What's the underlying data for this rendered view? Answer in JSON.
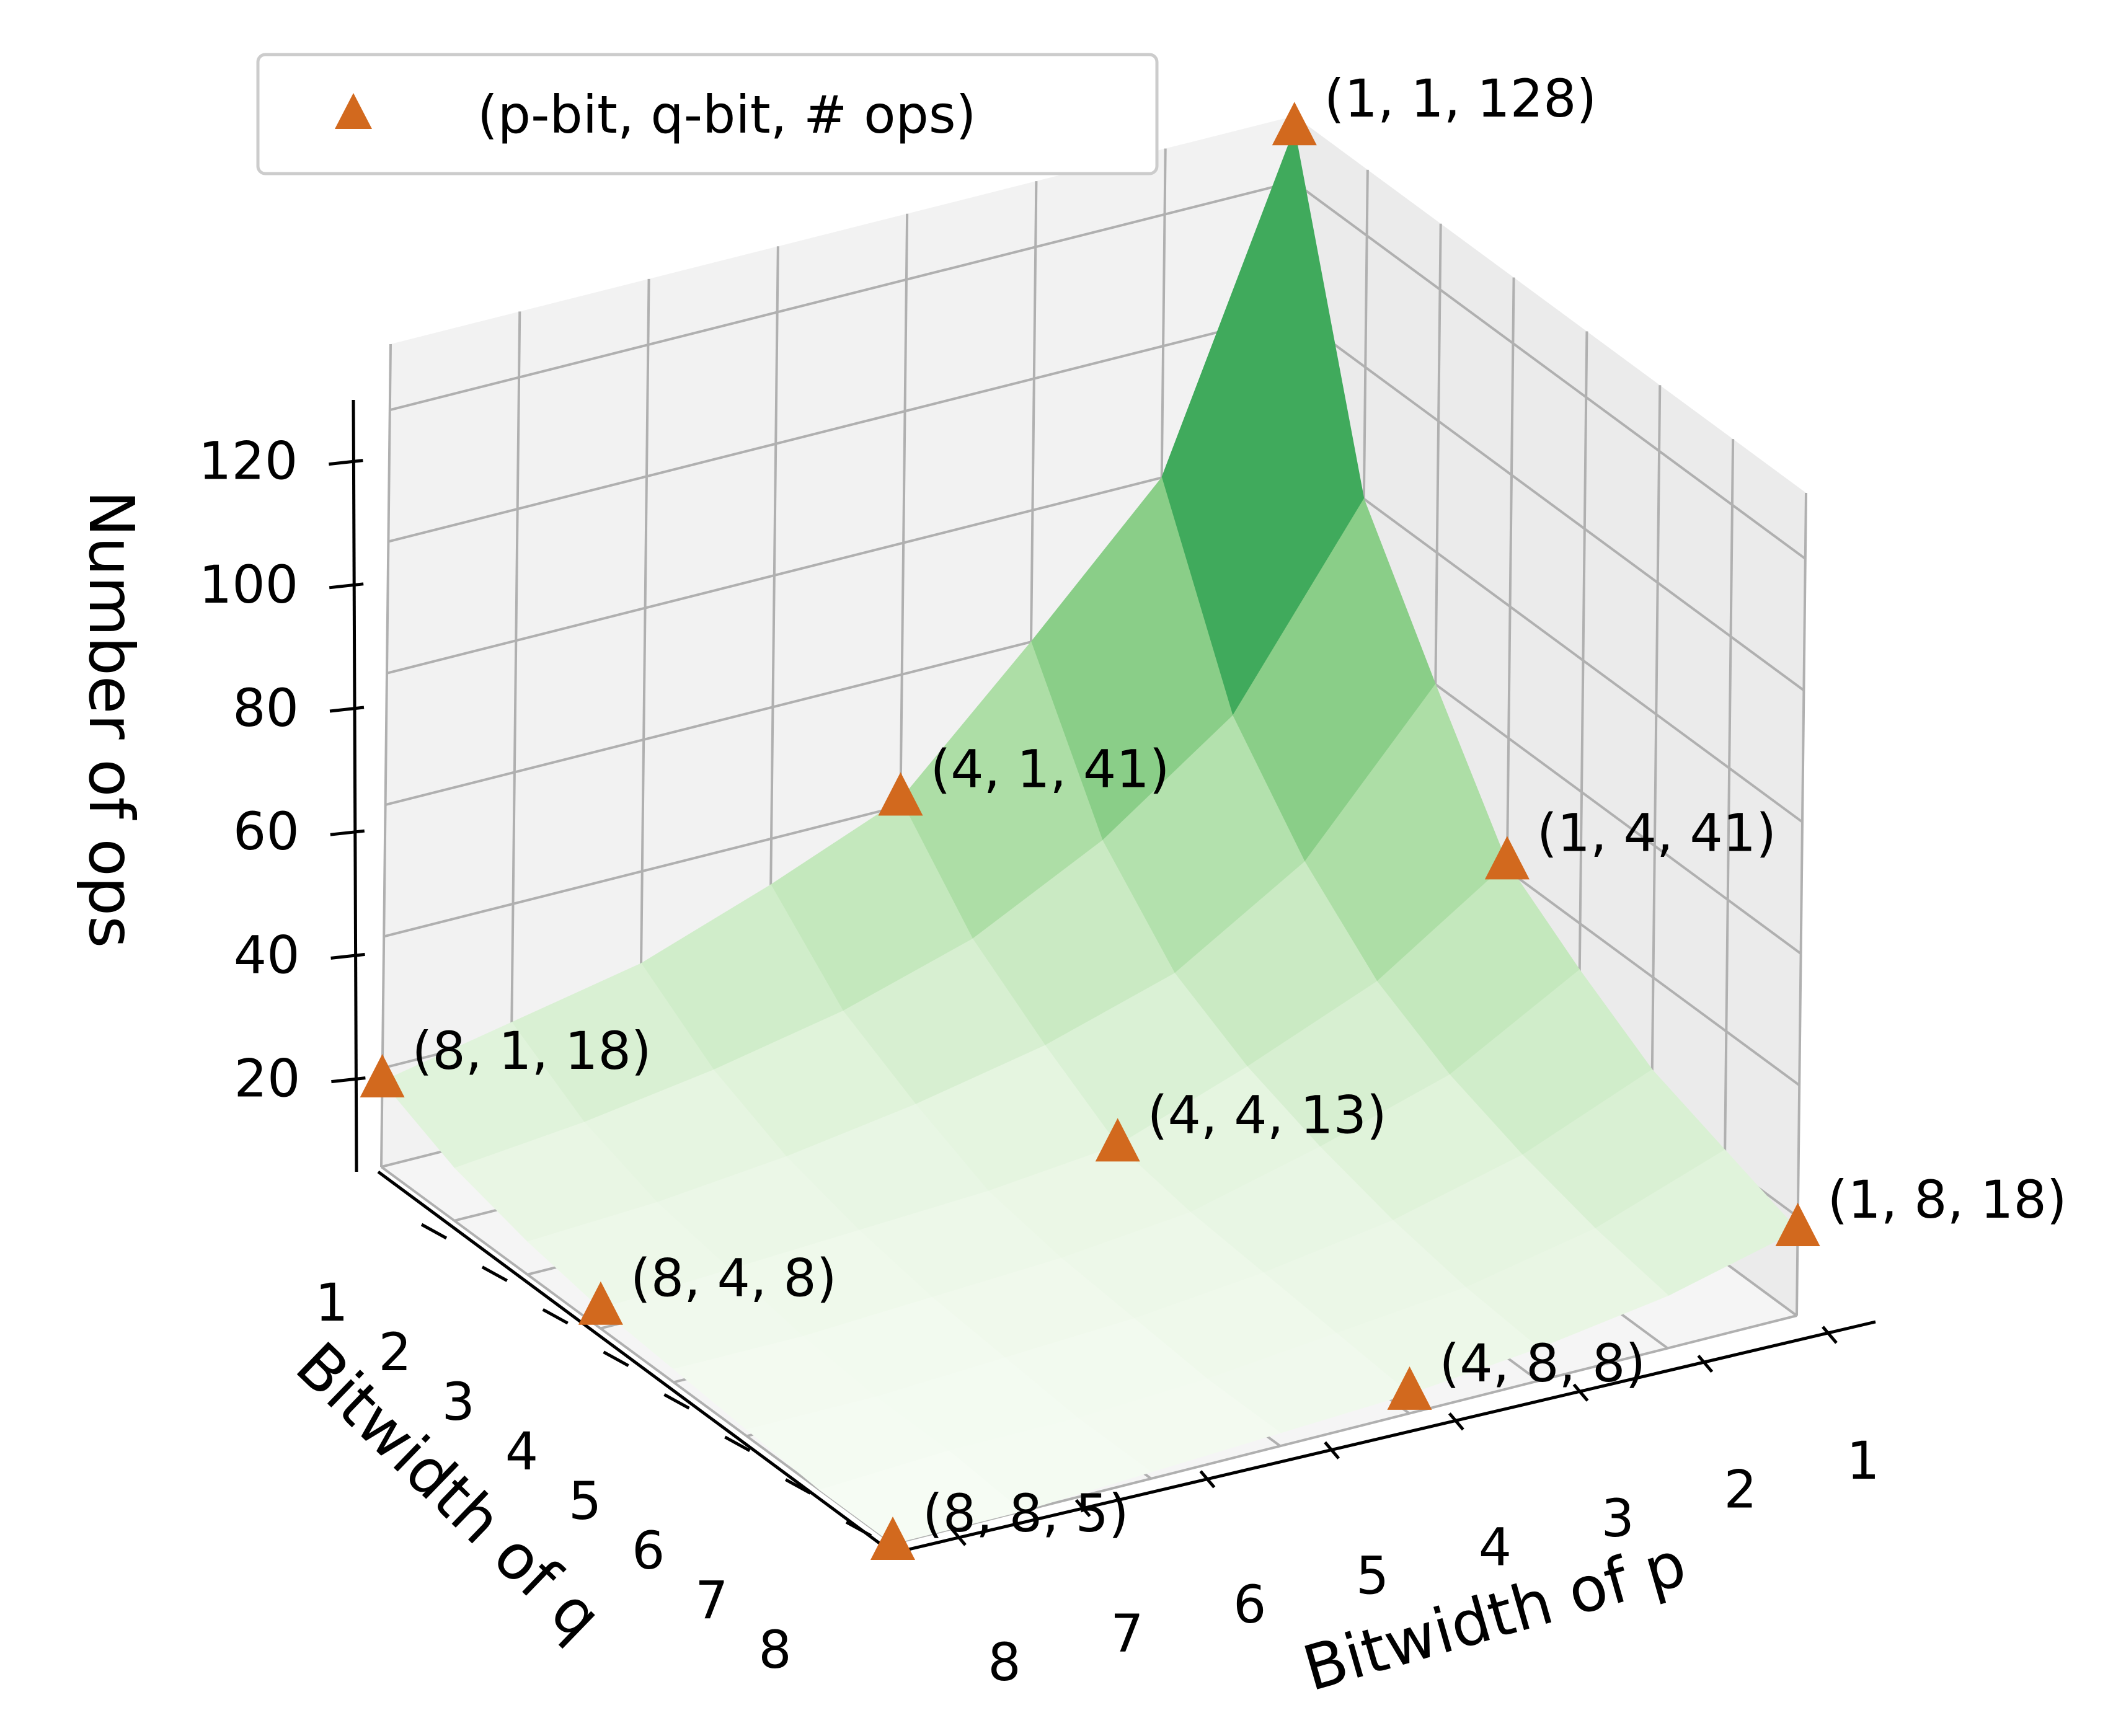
{
  "chart_data": {
    "type": "surface3d",
    "x_axis": {
      "label": "Bitwidth of p",
      "ticks": [
        1,
        2,
        3,
        4,
        5,
        6,
        7,
        8
      ]
    },
    "y_axis": {
      "label": "Bitwidth of q",
      "ticks": [
        1,
        2,
        3,
        4,
        5,
        6,
        7,
        8
      ]
    },
    "z_axis": {
      "label": "Number of ops",
      "ticks": [
        20,
        40,
        60,
        80,
        100,
        120
      ],
      "range": [
        5,
        130
      ]
    },
    "grid": true,
    "colormap": "Greens",
    "legend": {
      "location": "top-left",
      "entries": [
        {
          "marker": "triangle",
          "label": "(p-bit, q-bit, # ops)",
          "color": "#D2691E"
        }
      ]
    },
    "marker_color": "#D2691E",
    "surface_z": [
      [
        128,
        80,
        60,
        41,
        33,
        26,
        22,
        18
      ],
      [
        80,
        52,
        38,
        28,
        22,
        18,
        15,
        13
      ],
      [
        60,
        38,
        26,
        20,
        16,
        13,
        11,
        10
      ],
      [
        41,
        28,
        20,
        13,
        11,
        10,
        9,
        8
      ],
      [
        33,
        22,
        16,
        11,
        9,
        8,
        7,
        7
      ],
      [
        26,
        18,
        13,
        10,
        8,
        7,
        6,
        6
      ],
      [
        22,
        15,
        11,
        9,
        7,
        6,
        6,
        5
      ],
      [
        18,
        13,
        10,
        8,
        7,
        6,
        5,
        5
      ]
    ],
    "points": [
      {
        "p": 1,
        "q": 1,
        "ops": 128,
        "label": "(1, 1, 128)"
      },
      {
        "p": 1,
        "q": 4,
        "ops": 41,
        "label": "(1, 4, 41)"
      },
      {
        "p": 4,
        "q": 1,
        "ops": 41,
        "label": "(4, 1, 41)"
      },
      {
        "p": 1,
        "q": 8,
        "ops": 18,
        "label": "(1, 8, 18)"
      },
      {
        "p": 4,
        "q": 4,
        "ops": 13,
        "label": "(4, 4, 13)"
      },
      {
        "p": 8,
        "q": 1,
        "ops": 18,
        "label": "(8, 1, 18)"
      },
      {
        "p": 4,
        "q": 8,
        "ops": 8,
        "label": "(4, 8, 8)"
      },
      {
        "p": 8,
        "q": 4,
        "ops": 8,
        "label": "(8, 4, 8)"
      },
      {
        "p": 8,
        "q": 8,
        "ops": 5,
        "label": "(8, 8, 5)"
      }
    ]
  }
}
